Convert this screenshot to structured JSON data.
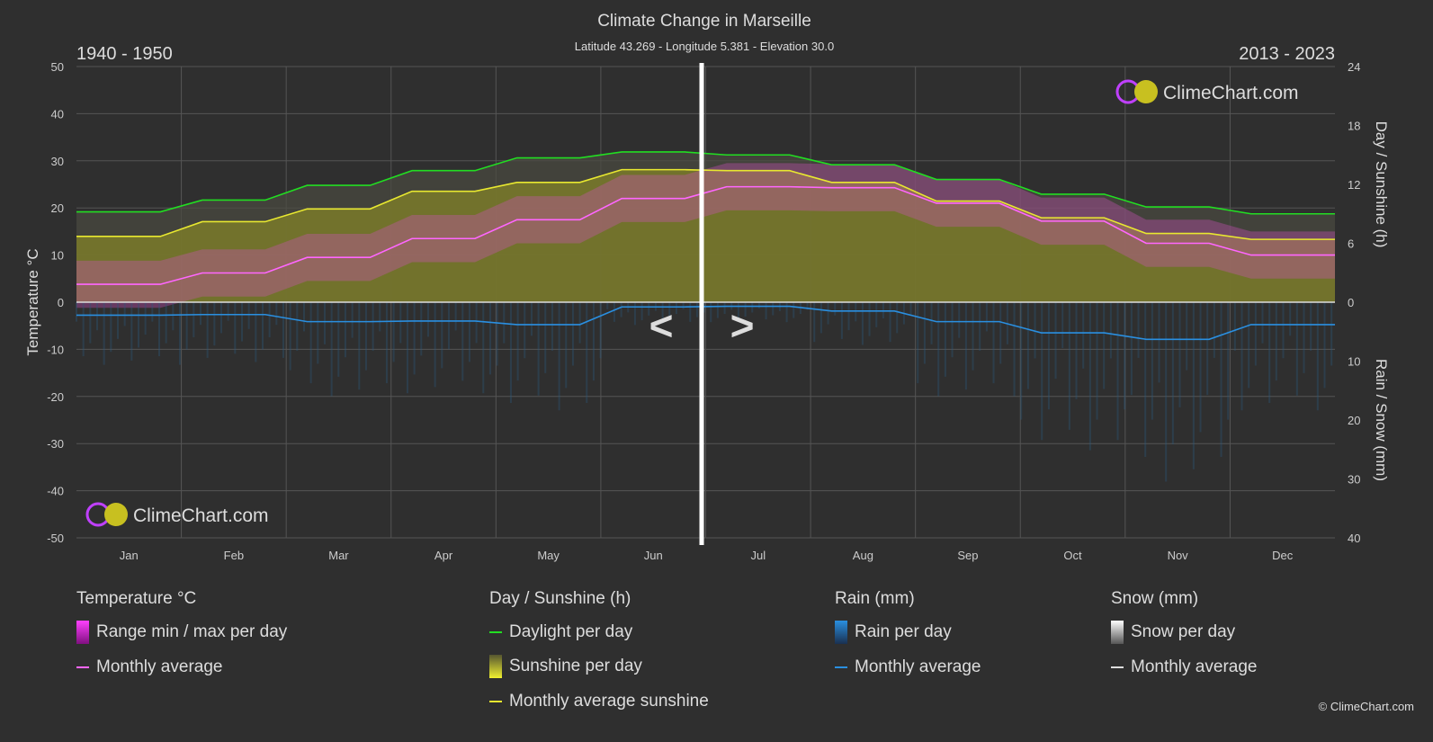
{
  "chart_data": {
    "type": "line",
    "title": "Climate Change in Marseille",
    "subtitle": "Latitude 43.269 - Longitude 5.381 - Elevation 30.0",
    "period_left": "1940 - 1950",
    "period_right": "2013 - 2023",
    "categories": [
      "Jan",
      "Feb",
      "Mar",
      "Apr",
      "May",
      "Jun",
      "Jul",
      "Aug",
      "Sep",
      "Oct",
      "Nov",
      "Dec"
    ],
    "y_left": {
      "label": "Temperature °C",
      "range": [
        -50,
        50
      ],
      "ticks": [
        "50",
        "40",
        "30",
        "20",
        "10",
        "0",
        "-10",
        "-20",
        "-30",
        "-40",
        "-50"
      ]
    },
    "y_right_top": {
      "label": "Day / Sunshine (h)",
      "range": [
        0,
        24
      ],
      "ticks": [
        "24",
        "18",
        "12",
        "6",
        "0"
      ]
    },
    "y_right_bottom": {
      "label": "Rain / Snow (mm)",
      "range": [
        0,
        40
      ],
      "ticks": [
        "0",
        "10",
        "20",
        "30",
        "40"
      ]
    },
    "grid": true,
    "series": [
      {
        "name": "Monthly average",
        "group": "Temperature °C",
        "axis": "temperature",
        "color": "#ff66ff",
        "values": [
          3.8,
          6.2,
          9.5,
          13.5,
          17.5,
          22.0,
          24.5,
          24.3,
          21.0,
          17.2,
          12.5,
          10.0
        ]
      },
      {
        "name": "Daylight per day",
        "group": "Day / Sunshine (h)",
        "axis": "hours",
        "color": "#22dd22",
        "values": [
          9.2,
          10.4,
          11.9,
          13.4,
          14.7,
          15.3,
          15.0,
          14.0,
          12.5,
          11.0,
          9.7,
          9.0
        ]
      },
      {
        "name": "Monthly average sunshine",
        "group": "Day / Sunshine (h)",
        "axis": "hours",
        "color": "#e8e830",
        "values": [
          6.7,
          8.2,
          9.5,
          11.3,
          12.2,
          13.5,
          13.4,
          12.2,
          10.3,
          8.6,
          7.0,
          6.4
        ]
      },
      {
        "name": "Monthly average",
        "group": "Rain (mm)",
        "axis": "rain",
        "color": "#2a8fe0",
        "values": [
          2.2,
          2.1,
          3.3,
          3.2,
          3.8,
          0.8,
          0.7,
          1.5,
          3.3,
          5.2,
          6.3,
          3.8
        ]
      }
    ],
    "legend_position": "bottom"
  },
  "legend": {
    "temperature": {
      "title": "Temperature °C",
      "range": "Range min / max per day",
      "avg": "Monthly average"
    },
    "sun": {
      "title": "Day / Sunshine (h)",
      "daylight": "Daylight per day",
      "sunshine": "Sunshine per day",
      "avg": "Monthly average sunshine"
    },
    "rain": {
      "title": "Rain (mm)",
      "per_day": "Rain per day",
      "avg": "Monthly average"
    },
    "snow": {
      "title": "Snow (mm)",
      "per_day": "Snow per day",
      "avg": "Monthly average"
    }
  },
  "brand": "ClimeChart.com",
  "copyright": "© ClimeChart.com",
  "nav": {
    "prev": "<",
    "next": ">"
  }
}
